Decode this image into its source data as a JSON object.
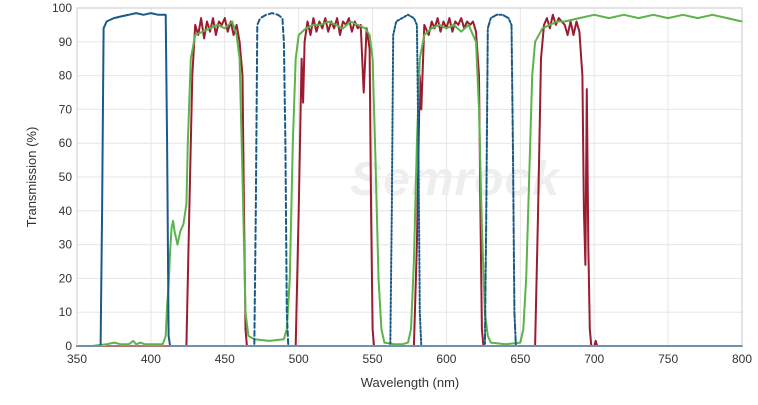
{
  "chart_data": {
    "type": "line",
    "title": "",
    "xlabel": "Wavelength (nm)",
    "ylabel": "Transmission (%)",
    "xlim": [
      350,
      800
    ],
    "ylim": [
      0,
      100
    ],
    "xticks": [
      350,
      400,
      450,
      500,
      550,
      600,
      650,
      700,
      750,
      800
    ],
    "yticks": [
      0,
      10,
      20,
      30,
      40,
      50,
      60,
      70,
      80,
      90,
      100
    ],
    "grid": true,
    "legend": "none",
    "watermark": "Semrock",
    "series": [
      {
        "color": "#9b1b30",
        "dash": "solid",
        "points": [
          [
            350,
            0
          ],
          [
            424,
            0
          ],
          [
            426,
            40
          ],
          [
            428,
            80
          ],
          [
            430,
            95
          ],
          [
            432,
            92
          ],
          [
            434,
            97
          ],
          [
            436,
            91
          ],
          [
            438,
            96
          ],
          [
            440,
            93
          ],
          [
            442,
            97
          ],
          [
            444,
            92
          ],
          [
            446,
            96
          ],
          [
            448,
            95
          ],
          [
            450,
            97
          ],
          [
            452,
            93
          ],
          [
            454,
            96
          ],
          [
            456,
            92
          ],
          [
            458,
            95
          ],
          [
            460,
            90
          ],
          [
            462,
            80
          ],
          [
            463,
            40
          ],
          [
            464,
            5
          ],
          [
            465,
            0
          ],
          [
            498,
            0
          ],
          [
            500,
            40
          ],
          [
            502,
            85
          ],
          [
            503,
            72
          ],
          [
            504,
            90
          ],
          [
            506,
            96
          ],
          [
            508,
            92
          ],
          [
            510,
            97
          ],
          [
            512,
            93
          ],
          [
            514,
            96
          ],
          [
            516,
            94
          ],
          [
            518,
            97
          ],
          [
            520,
            93
          ],
          [
            522,
            96
          ],
          [
            524,
            94
          ],
          [
            526,
            97
          ],
          [
            528,
            92
          ],
          [
            530,
            96
          ],
          [
            532,
            95
          ],
          [
            534,
            97
          ],
          [
            536,
            93
          ],
          [
            538,
            96
          ],
          [
            540,
            94
          ],
          [
            542,
            95
          ],
          [
            543,
            85
          ],
          [
            544,
            75
          ],
          [
            546,
            94
          ],
          [
            548,
            88
          ],
          [
            549,
            40
          ],
          [
            550,
            5
          ],
          [
            551,
            0
          ],
          [
            578,
            0
          ],
          [
            580,
            30
          ],
          [
            582,
            80
          ],
          [
            583,
            70
          ],
          [
            585,
            95
          ],
          [
            588,
            92
          ],
          [
            590,
            96
          ],
          [
            592,
            94
          ],
          [
            594,
            97
          ],
          [
            596,
            93
          ],
          [
            598,
            96
          ],
          [
            600,
            94
          ],
          [
            602,
            97
          ],
          [
            604,
            93
          ],
          [
            606,
            96
          ],
          [
            608,
            95
          ],
          [
            610,
            97
          ],
          [
            612,
            94
          ],
          [
            614,
            96
          ],
          [
            616,
            95
          ],
          [
            618,
            96
          ],
          [
            620,
            93
          ],
          [
            622,
            80
          ],
          [
            623,
            40
          ],
          [
            624,
            5
          ],
          [
            625,
            0
          ],
          [
            660,
            0
          ],
          [
            662,
            40
          ],
          [
            664,
            85
          ],
          [
            666,
            95
          ],
          [
            668,
            97
          ],
          [
            670,
            94
          ],
          [
            672,
            98
          ],
          [
            674,
            95
          ],
          [
            676,
            97
          ],
          [
            678,
            96
          ],
          [
            680,
            95
          ],
          [
            682,
            92
          ],
          [
            684,
            96
          ],
          [
            686,
            92
          ],
          [
            688,
            96
          ],
          [
            690,
            93
          ],
          [
            692,
            80
          ],
          [
            693,
            40
          ],
          [
            694,
            24
          ],
          [
            695,
            76
          ],
          [
            696,
            30
          ],
          [
            697,
            5
          ],
          [
            698,
            0
          ],
          [
            700,
            0
          ],
          [
            701,
            1.5
          ],
          [
            702,
            0
          ],
          [
            710,
            0
          ]
        ]
      },
      {
        "color": "#5cb34a",
        "dash": "solid",
        "points": [
          [
            350,
            0
          ],
          [
            360,
            0
          ],
          [
            370,
            0.5
          ],
          [
            375,
            1
          ],
          [
            380,
            0.5
          ],
          [
            385,
            0.5
          ],
          [
            388,
            1.5
          ],
          [
            390,
            0.5
          ],
          [
            393,
            1
          ],
          [
            396,
            0.5
          ],
          [
            400,
            0.5
          ],
          [
            408,
            0.5
          ],
          [
            410,
            3
          ],
          [
            411,
            12
          ],
          [
            412,
            18
          ],
          [
            413,
            28
          ],
          [
            414,
            35
          ],
          [
            415,
            37
          ],
          [
            416,
            34
          ],
          [
            418,
            30
          ],
          [
            420,
            34
          ],
          [
            422,
            36
          ],
          [
            424,
            42
          ],
          [
            425,
            60
          ],
          [
            427,
            85
          ],
          [
            430,
            92
          ],
          [
            435,
            93
          ],
          [
            440,
            94
          ],
          [
            445,
            95
          ],
          [
            450,
            94
          ],
          [
            455,
            96
          ],
          [
            458,
            92
          ],
          [
            460,
            85
          ],
          [
            462,
            50
          ],
          [
            464,
            10
          ],
          [
            466,
            3
          ],
          [
            470,
            2
          ],
          [
            480,
            1.5
          ],
          [
            490,
            2
          ],
          [
            492,
            5
          ],
          [
            494,
            20
          ],
          [
            496,
            60
          ],
          [
            498,
            85
          ],
          [
            500,
            92
          ],
          [
            505,
            94
          ],
          [
            510,
            95
          ],
          [
            515,
            95
          ],
          [
            520,
            96
          ],
          [
            525,
            95
          ],
          [
            530,
            94
          ],
          [
            535,
            96
          ],
          [
            540,
            95
          ],
          [
            545,
            94
          ],
          [
            548,
            92
          ],
          [
            550,
            85
          ],
          [
            552,
            55
          ],
          [
            554,
            20
          ],
          [
            556,
            5
          ],
          [
            558,
            1
          ],
          [
            565,
            0.5
          ],
          [
            570,
            0.5
          ],
          [
            574,
            1
          ],
          [
            576,
            5
          ],
          [
            578,
            25
          ],
          [
            580,
            60
          ],
          [
            582,
            85
          ],
          [
            585,
            92
          ],
          [
            590,
            94
          ],
          [
            595,
            95
          ],
          [
            600,
            94
          ],
          [
            605,
            95
          ],
          [
            610,
            93
          ],
          [
            615,
            95
          ],
          [
            620,
            90
          ],
          [
            622,
            70
          ],
          [
            624,
            35
          ],
          [
            626,
            10
          ],
          [
            628,
            3
          ],
          [
            630,
            1
          ],
          [
            640,
            0.5
          ],
          [
            650,
            1
          ],
          [
            652,
            5
          ],
          [
            654,
            20
          ],
          [
            656,
            50
          ],
          [
            658,
            80
          ],
          [
            660,
            90
          ],
          [
            665,
            94
          ],
          [
            670,
            95
          ],
          [
            675,
            96
          ],
          [
            680,
            96
          ],
          [
            690,
            97
          ],
          [
            700,
            98
          ],
          [
            710,
            97
          ],
          [
            720,
            98
          ],
          [
            730,
            97
          ],
          [
            740,
            98
          ],
          [
            750,
            97
          ],
          [
            760,
            98
          ],
          [
            770,
            97
          ],
          [
            780,
            98
          ],
          [
            790,
            97
          ],
          [
            800,
            96
          ]
        ]
      },
      {
        "color": "#1b5a86",
        "dash": "solid",
        "points": [
          [
            350,
            0
          ],
          [
            366,
            0
          ],
          [
            367,
            40
          ],
          [
            368,
            94
          ],
          [
            370,
            96
          ],
          [
            375,
            97
          ],
          [
            380,
            97.5
          ],
          [
            385,
            98
          ],
          [
            390,
            98.5
          ],
          [
            395,
            98
          ],
          [
            400,
            98.5
          ],
          [
            405,
            98
          ],
          [
            410,
            98
          ],
          [
            411,
            60
          ],
          [
            412,
            3
          ],
          [
            413,
            0
          ],
          [
            480,
            0
          ],
          [
            800,
            0
          ]
        ]
      },
      {
        "color": "#1b5a86",
        "dash": "5,3",
        "points": [
          [
            466,
            0
          ],
          [
            470,
            0
          ],
          [
            471,
            40
          ],
          [
            472,
            95
          ],
          [
            474,
            97
          ],
          [
            478,
            98
          ],
          [
            482,
            98.5
          ],
          [
            486,
            98
          ],
          [
            489,
            97
          ],
          [
            490,
            90
          ],
          [
            491,
            60
          ],
          [
            492,
            10
          ],
          [
            493,
            0
          ],
          [
            496,
            0
          ]
        ]
      },
      {
        "color": "#1b5a86",
        "dash": "2,2",
        "points": [
          [
            558,
            0
          ],
          [
            562,
            0
          ],
          [
            563,
            40
          ],
          [
            564,
            92
          ],
          [
            566,
            96
          ],
          [
            570,
            97
          ],
          [
            574,
            98
          ],
          [
            578,
            97
          ],
          [
            580,
            95
          ],
          [
            581,
            60
          ],
          [
            582,
            10
          ],
          [
            583,
            0
          ],
          [
            586,
            0
          ]
        ]
      },
      {
        "color": "#1b5a86",
        "dash": "6,2,2,2",
        "points": [
          [
            622,
            0
          ],
          [
            626,
            0
          ],
          [
            627,
            40
          ],
          [
            628,
            94
          ],
          [
            630,
            97
          ],
          [
            634,
            98
          ],
          [
            638,
            98
          ],
          [
            642,
            97
          ],
          [
            644,
            95
          ],
          [
            645,
            60
          ],
          [
            646,
            10
          ],
          [
            647,
            0
          ],
          [
            650,
            0
          ]
        ]
      }
    ]
  }
}
